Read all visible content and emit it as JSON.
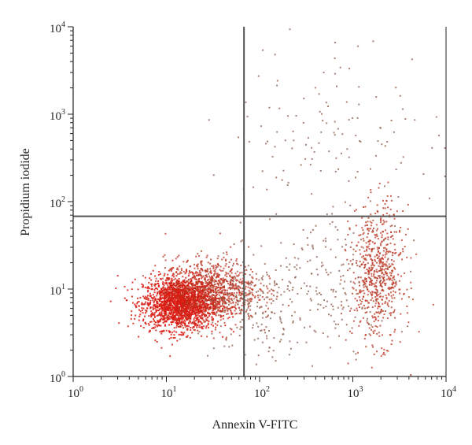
{
  "chart_data": {
    "type": "scatter",
    "title": "",
    "xlabel": "Annexin V-FITC",
    "ylabel": "Propidium iodide",
    "x_scale": "log",
    "y_scale": "log",
    "xlim": [
      1,
      10000
    ],
    "ylim": [
      1,
      10000
    ],
    "x_ticks": [
      {
        "base": "10",
        "exp": "0"
      },
      {
        "base": "10",
        "exp": "1"
      },
      {
        "base": "10",
        "exp": "2"
      },
      {
        "base": "10",
        "exp": "3"
      },
      {
        "base": "10",
        "exp": "4"
      }
    ],
    "y_ticks": [
      {
        "base": "10",
        "exp": "0"
      },
      {
        "base": "10",
        "exp": "1"
      },
      {
        "base": "10",
        "exp": "2"
      },
      {
        "base": "10",
        "exp": "3"
      },
      {
        "base": "10",
        "exp": "4"
      }
    ],
    "quadrant_gates": {
      "x": 68,
      "y": 68
    },
    "grid": false,
    "colors": {
      "dense": "#d91a10",
      "mid": "#b8321e",
      "sparse": "#8a5a4a",
      "gate": "#555555",
      "axis": "#222222"
    },
    "populations": [
      {
        "name": "",
        "center": [
          14,
          7
        ],
        "spread_decades": [
          0.2,
          0.15
        ],
        "count": 1900,
        "color": "dense"
      },
      {
        "name": "",
        "center": [
          30,
          10
        ],
        "spread_decades": [
          0.25,
          0.18
        ],
        "count": 900,
        "color": "mid"
      },
      {
        "name": "",
        "center": [
          80,
          6
        ],
        "spread_decades": [
          0.28,
          0.3
        ],
        "count": 200,
        "color": "sparse"
      },
      {
        "name": "",
        "center": [
          1800,
          15
        ],
        "spread_decades": [
          0.14,
          0.38
        ],
        "count": 650,
        "color": "mid"
      },
      {
        "name": "",
        "center": [
          600,
          12
        ],
        "spread_decades": [
          0.35,
          0.35
        ],
        "count": 180,
        "color": "sparse"
      },
      {
        "name": "",
        "center": [
          600,
          600
        ],
        "spread_decades": [
          0.55,
          0.55
        ],
        "count": 130,
        "color": "sparse"
      }
    ]
  }
}
